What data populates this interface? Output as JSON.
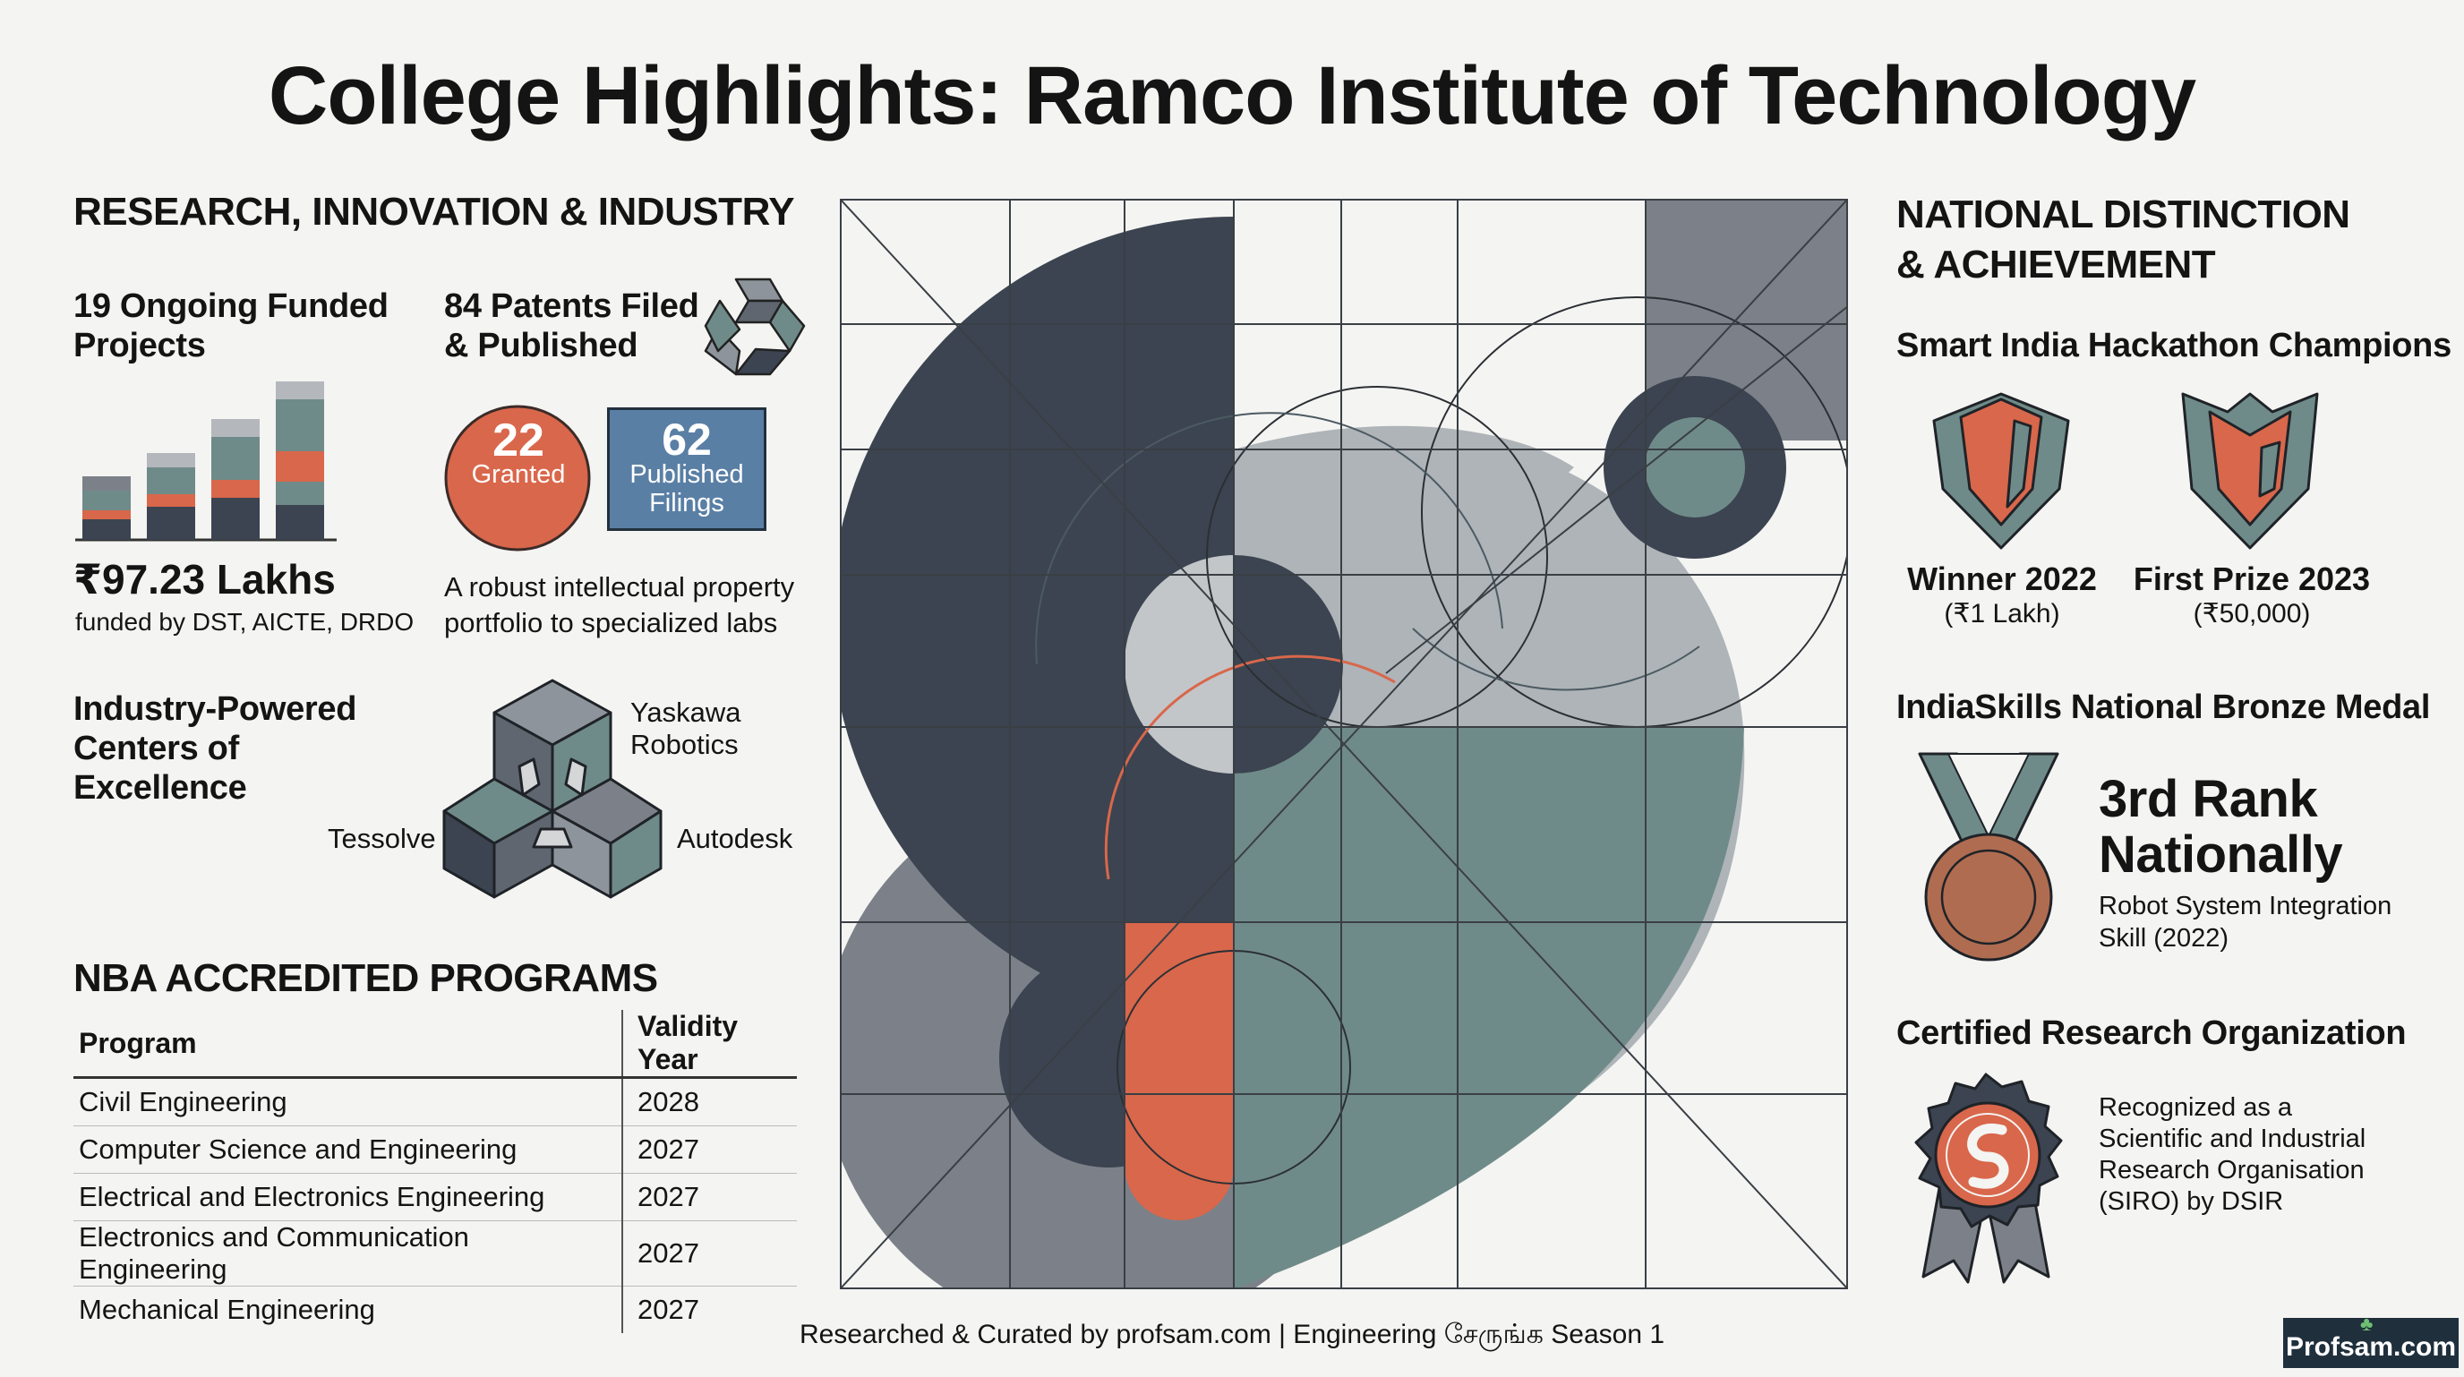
{
  "title": "College Highlights: Ramco Institute of Technology",
  "left": {
    "section_title": "RESEARCH, INNOVATION & INDUSTRY",
    "projects": {
      "heading": [
        "19 Ongoing Funded",
        "Projects"
      ],
      "amount": "₹97.23 Lakhs",
      "funders": "funded by DST, AICTE, DRDO"
    },
    "patents": {
      "heading": [
        "84 Patents Filed",
        "& Published"
      ],
      "granted_value": "22",
      "granted_label": "Granted",
      "published_value": "62",
      "published_label": [
        "Published",
        "Filings"
      ],
      "caption": [
        "A robust intellectual property",
        "portfolio to specialized labs"
      ]
    },
    "industry": {
      "heading": [
        "Industry-Powered",
        "Centers of",
        "Excellence"
      ],
      "partners": [
        "Yaskawa",
        "Robotics",
        "Tessolve",
        "Autodesk"
      ]
    },
    "nba": {
      "title": "NBA ACCREDITED PROGRAMS",
      "columns": [
        "Program",
        "Validity Year"
      ],
      "rows": [
        [
          "Civil Engineering",
          "2028"
        ],
        [
          "Computer Science and Engineering",
          "2027"
        ],
        [
          "Electrical and Electronics Engineering",
          "2027"
        ],
        [
          "Electronics and Communication Engineering",
          "2027"
        ],
        [
          "Mechanical Engineering",
          "2027"
        ]
      ]
    }
  },
  "right": {
    "section_title": [
      "NATIONAL DISTINCTION",
      "& ACHIEVEMENT"
    ],
    "hackathon": {
      "heading": "Smart India Hackathon Champions",
      "win1_title": "Winner 2022",
      "win1_amount": "(₹1 Lakh)",
      "win2_title": "First Prize 2023",
      "win2_amount": "(₹50,000)"
    },
    "skills": {
      "heading": "IndiaSkills National Bronze Medal",
      "rank": [
        "3rd Rank",
        "Nationally"
      ],
      "detail": [
        "Robot System Integration",
        "Skill (2022)"
      ]
    },
    "siro": {
      "heading": "Certified Research Organization",
      "detail": [
        "Recognized as a",
        "Scientific and Industrial",
        "Research Organisation",
        "(SIRO) by DSIR"
      ]
    }
  },
  "footer": "Researched & Curated by profsam.com | Engineering சேருங்க Season 1",
  "logo": "Profsam.com",
  "colors": {
    "dark": "#3b4450",
    "slate": "#7c8189",
    "teal": "#6f8b89",
    "orange": "#d9674b",
    "blue": "#5a7fa5",
    "bronze": "#b06c50"
  }
}
